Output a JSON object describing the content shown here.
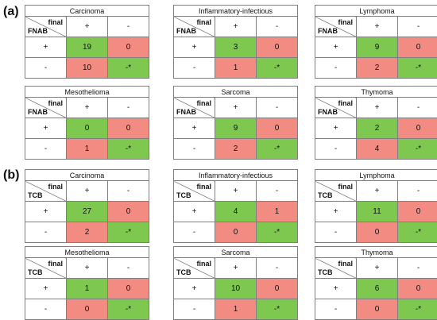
{
  "panel_a": {
    "label": "(a)",
    "row_label": "FNAB"
  },
  "panel_b": {
    "label": "(b)",
    "row_label": "TCB"
  },
  "col_label": "final",
  "plus": "+",
  "minus": "-",
  "dash_star": "-*",
  "colors": {
    "green": "#7ec850",
    "pink": "#f28b82"
  },
  "tables_a": [
    {
      "title": "Carcinoma",
      "tp": "19",
      "fp": "0",
      "fn": "10"
    },
    {
      "title": "Inflammatory-infectious",
      "tp": "3",
      "fp": "0",
      "fn": "1"
    },
    {
      "title": "Lymphoma",
      "tp": "9",
      "fp": "0",
      "fn": "2"
    },
    {
      "title": "Mesothelioma",
      "tp": "0",
      "fp": "0",
      "fn": "1"
    },
    {
      "title": "Sarcoma",
      "tp": "9",
      "fp": "0",
      "fn": "2"
    },
    {
      "title": "Thymoma",
      "tp": "2",
      "fp": "0",
      "fn": "4"
    }
  ],
  "tables_b": [
    {
      "title": "Carcinoma",
      "tp": "27",
      "fp": "0",
      "fn": "2"
    },
    {
      "title": "Inflammatory-infectious",
      "tp": "4",
      "fp": "1",
      "fn": "0"
    },
    {
      "title": "Lymphoma",
      "tp": "11",
      "fp": "0",
      "fn": "0"
    },
    {
      "title": "Mesothelioma",
      "tp": "1",
      "fp": "0",
      "fn": "0"
    },
    {
      "title": "Sarcoma",
      "tp": "10",
      "fp": "0",
      "fn": "1"
    },
    {
      "title": "Thymoma",
      "tp": "6",
      "fp": "0",
      "fn": "0"
    }
  ]
}
